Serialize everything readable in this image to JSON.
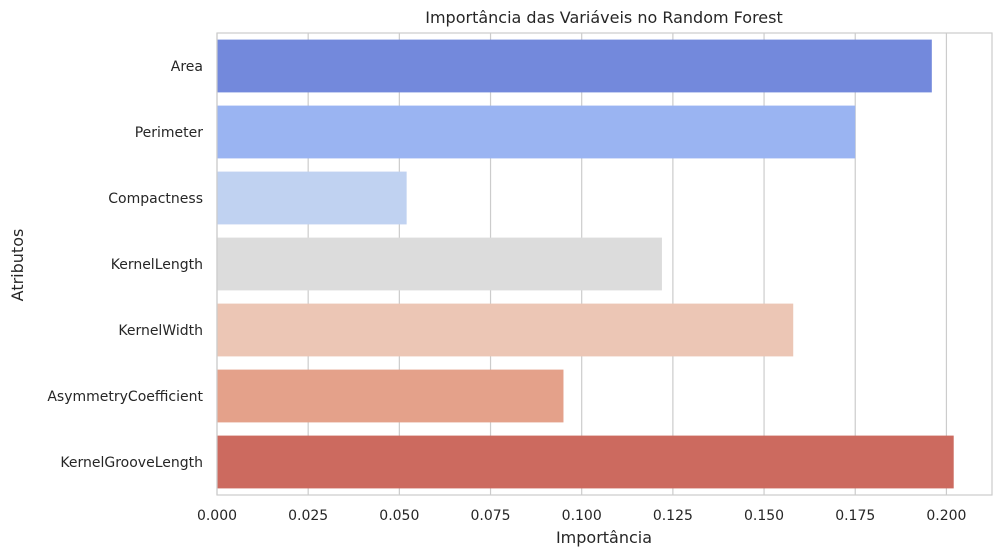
{
  "chart_data": {
    "type": "bar",
    "orientation": "horizontal",
    "title": "Importância das Variáveis no Random Forest",
    "xlabel": "Importância",
    "ylabel": "Atributos",
    "categories": [
      "Area",
      "Perimeter",
      "Compactness",
      "KernelLength",
      "KernelWidth",
      "AsymmetryCoefficient",
      "KernelGrooveLength"
    ],
    "values": [
      0.196,
      0.175,
      0.052,
      0.122,
      0.158,
      0.095,
      0.202
    ],
    "colors": [
      "#7389dc",
      "#9ab4f2",
      "#c0d2f1",
      "#dcdcdc",
      "#ecc6b5",
      "#e4a18a",
      "#cc6a5f"
    ],
    "xlim": [
      0.0,
      0.2125
    ],
    "xticks": [
      0.0,
      0.025,
      0.05,
      0.075,
      0.1,
      0.125,
      0.15,
      0.175,
      0.2
    ],
    "xtick_labels": [
      "0.000",
      "0.025",
      "0.050",
      "0.075",
      "0.100",
      "0.125",
      "0.150",
      "0.175",
      "0.200"
    ],
    "grid": "vertical",
    "grid_color": "#cccccc",
    "axes_edge_color": "#cccccc"
  }
}
